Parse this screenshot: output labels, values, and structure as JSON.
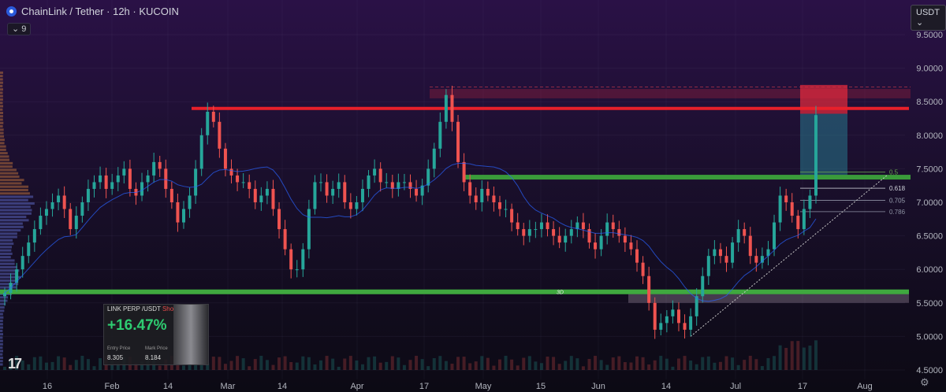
{
  "header": {
    "title": "ChainLink / Tether · 12h · KUCOIN",
    "indicator_count": "9",
    "currency": "USDT"
  },
  "card": {
    "pair": "LINK PERP /USDT",
    "side": "Short",
    "pnl": "+16.47%",
    "entry_label": "Entry Price",
    "entry_value": "8.305",
    "mark_label": "Mark Price",
    "mark_value": "8.184"
  },
  "chart_data": {
    "type": "candlestick",
    "xlabels": [
      "16",
      "Feb",
      "14",
      "Mar",
      "14",
      "Apr",
      "17",
      "May",
      "15",
      "Jun",
      "14",
      "Jul",
      "17",
      "Aug"
    ],
    "y_ticks": [
      "9.5000",
      "9.0000",
      "8.5000",
      "8.0000",
      "7.5000",
      "7.0000",
      "6.5000",
      "6.0000",
      "5.5000",
      "5.0000",
      "4.5000"
    ],
    "ylim": [
      4.5,
      9.5
    ],
    "levels": {
      "resistance": 8.4,
      "support": 5.65,
      "mid_zone": 7.37,
      "stop_zone": [
        8.32,
        8.75
      ],
      "demand_zone": [
        5.55,
        5.7
      ]
    },
    "fib": [
      {
        "label": "0.5",
        "value": 7.45
      },
      {
        "label": "0.618",
        "value": 7.21
      },
      {
        "label": "0.705",
        "value": 7.03
      },
      {
        "label": "0.786",
        "value": 6.86
      }
    ],
    "zone_label": "3D",
    "closes": [
      5.65,
      5.8,
      6.0,
      6.2,
      6.4,
      6.6,
      6.8,
      6.9,
      7.0,
      7.1,
      6.9,
      6.6,
      6.8,
      7.0,
      7.2,
      7.3,
      7.4,
      7.2,
      7.3,
      7.4,
      7.5,
      7.2,
      7.1,
      7.3,
      7.4,
      7.6,
      7.5,
      7.2,
      7.0,
      6.7,
      6.9,
      7.1,
      7.5,
      8.0,
      8.35,
      8.2,
      7.8,
      7.5,
      7.4,
      7.3,
      7.3,
      7.2,
      7.0,
      7.1,
      7.2,
      6.9,
      6.6,
      6.3,
      6.0,
      6.0,
      6.3,
      6.9,
      7.3,
      7.3,
      7.1,
      7.2,
      7.3,
      7.0,
      6.9,
      7.0,
      7.2,
      7.4,
      7.5,
      7.3,
      7.3,
      7.2,
      7.3,
      7.3,
      7.2,
      7.1,
      7.25,
      7.5,
      7.8,
      8.2,
      8.6,
      8.2,
      7.6,
      7.3,
      7.1,
      7.0,
      7.2,
      7.1,
      7.0,
      6.9,
      6.9,
      6.7,
      6.6,
      6.5,
      6.6,
      6.6,
      6.7,
      6.6,
      6.5,
      6.4,
      6.5,
      6.6,
      6.7,
      6.6,
      6.4,
      6.3,
      6.5,
      6.7,
      6.6,
      6.5,
      6.4,
      6.3,
      6.1,
      5.9,
      5.5,
      5.1,
      5.2,
      5.3,
      5.4,
      5.2,
      5.1,
      5.3,
      5.6,
      5.9,
      6.2,
      6.3,
      6.2,
      6.1,
      6.4,
      6.6,
      6.5,
      6.2,
      6.1,
      6.2,
      6.3,
      6.7,
      7.1,
      7.0,
      6.8,
      6.6,
      6.9,
      7.1,
      8.3
    ]
  }
}
